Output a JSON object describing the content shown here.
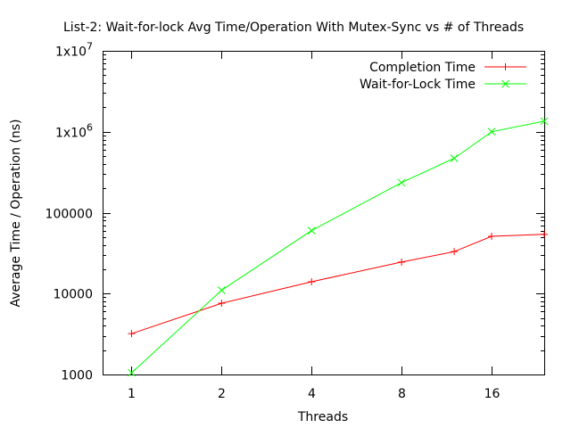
{
  "chart_data": {
    "type": "line",
    "title": "List-2: Wait-for-lock  Avg Time/Operation With Mutex-Sync vs # of Threads",
    "xlabel": "Threads",
    "ylabel": "Average Time / Operation (ns)",
    "x_scale": "log2",
    "y_scale": "log10",
    "xlim": [
      0.8,
      24
    ],
    "ylim": [
      1000,
      10000000
    ],
    "x_ticks": [
      {
        "value": 1,
        "label": "1"
      },
      {
        "value": 2,
        "label": "2"
      },
      {
        "value": 4,
        "label": "4"
      },
      {
        "value": 8,
        "label": "8"
      },
      {
        "value": 16,
        "label": "16"
      }
    ],
    "y_ticks": [
      {
        "value": 1000,
        "label": "1000"
      },
      {
        "value": 10000,
        "label": "10000"
      },
      {
        "value": 100000,
        "label": "100000"
      },
      {
        "value": 1000000,
        "base": "1x10",
        "exp": "6"
      },
      {
        "value": 10000000,
        "base": "1x10",
        "exp": "7"
      }
    ],
    "grid": false,
    "legend_position": "top-right",
    "series": [
      {
        "name": "Completion Time",
        "color": "#ff0000",
        "marker": "plus",
        "x": [
          1,
          2,
          4,
          8,
          12,
          16,
          24
        ],
        "y": [
          3200,
          7600,
          14000,
          24500,
          33000,
          51000,
          54000
        ]
      },
      {
        "name": "Wait-for-Lock Time",
        "color": "#00ff00",
        "marker": "cross",
        "x": [
          1,
          2,
          4,
          8,
          12,
          16,
          24
        ],
        "y": [
          1050,
          11000,
          60000,
          235000,
          470000,
          1000000,
          1350000
        ]
      }
    ]
  }
}
